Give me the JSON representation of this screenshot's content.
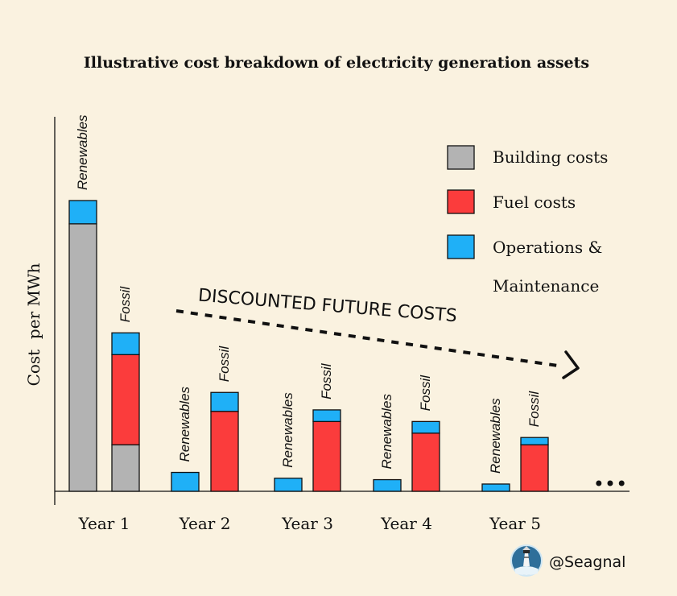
{
  "chart_data": {
    "type": "bar",
    "title": "Illustrative cost breakdown of electricity generation assets",
    "ylabel": "Cost  per MWh",
    "xlabel": "",
    "ylim": [
      0,
      100
    ],
    "categories": [
      "Year 1",
      "Year 2",
      "Year 3",
      "Year 4",
      "Year 5"
    ],
    "ellipsis": "•••",
    "series": [
      {
        "name": "Building costs",
        "color": "#b3b3b3"
      },
      {
        "name": "Fuel costs",
        "color": "#fb3c3c"
      },
      {
        "name": "Operations & Maintenance",
        "color": "#1fb0f7"
      }
    ],
    "legend": {
      "placement": "top-right",
      "entries": [
        "Building costs",
        "Fuel costs",
        "Operations &",
        "Maintenance"
      ]
    },
    "bars": [
      {
        "category": "Year 1",
        "label": "Renewables",
        "building": 92,
        "fuel": 0,
        "om": 8
      },
      {
        "category": "Year 1",
        "label": "Fossil",
        "building": 16,
        "fuel": 31,
        "om": 7.5
      },
      {
        "category": "Year 2",
        "label": "Renewables",
        "building": 0,
        "fuel": 0,
        "om": 6.5
      },
      {
        "category": "Year 2",
        "label": "Fossil",
        "building": 0,
        "fuel": 27.5,
        "om": 6.5
      },
      {
        "category": "Year 3",
        "label": "Renewables",
        "building": 0,
        "fuel": 0,
        "om": 4.5
      },
      {
        "category": "Year 3",
        "label": "Fossil",
        "building": 0,
        "fuel": 24,
        "om": 4
      },
      {
        "category": "Year 4",
        "label": "Renewables",
        "building": 0,
        "fuel": 0,
        "om": 4
      },
      {
        "category": "Year 4",
        "label": "Fossil",
        "building": 0,
        "fuel": 20,
        "om": 4
      },
      {
        "category": "Year 5",
        "label": "Renewables",
        "building": 0,
        "fuel": 0,
        "om": 2.5
      },
      {
        "category": "Year 5",
        "label": "Fossil",
        "building": 0,
        "fuel": 16,
        "om": 2.5
      }
    ],
    "annotation": "DISCOUNTED FUTURE COSTS"
  },
  "credit": "@Seagnal"
}
